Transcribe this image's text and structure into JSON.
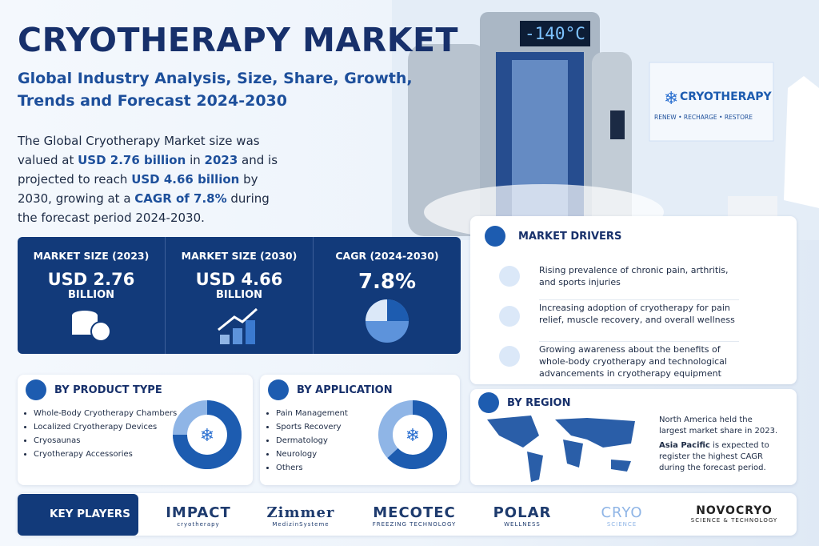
{
  "header": {
    "title": "CRYOTHERAPY MARKET",
    "subtitle_lines": [
      "Global Industry Analysis, Size, Share, Growth,",
      "Trends and Forecast 2024-2030"
    ]
  },
  "intro": {
    "parts": [
      "The Global Cryotherapy Market size was valued at ",
      "USD 2.76 billion",
      " in ",
      "2023",
      " and is projected to reach ",
      "USD 4.66 billion",
      " by 2030, growing at a ",
      "CAGR of 7.8%",
      " during the forecast period 2024-2030."
    ]
  },
  "scene": {
    "display": "-140°C",
    "sign_title": "CRYOTHERAPY",
    "sign_tagline": "RENEW • RECHARGE • RESTORE"
  },
  "stats": [
    {
      "label": "MARKET SIZE (2023)",
      "value": "USD 2.76",
      "unit": "BILLION"
    },
    {
      "label": "MARKET SIZE (2030)",
      "value": "USD 4.66",
      "unit": "BILLION"
    },
    {
      "label": "CAGR (2024-2030)",
      "value": "7.8%"
    }
  ],
  "drivers": {
    "title": "MARKET DRIVERS",
    "items": [
      "Rising prevalence of chronic pain, arthritis, and sports injuries",
      "Increasing adoption of cryotherapy for pain relief, muscle recovery, and overall wellness",
      "Growing awareness about the benefits of whole-body cryotherapy and technological advancements in cryotherapy equipment"
    ]
  },
  "product_type": {
    "title": "BY PRODUCT TYPE",
    "items": [
      "Whole-Body Cryotherapy Chambers",
      "Localized Cryotherapy Devices",
      "Cryosaunas",
      "Cryotherapy Accessories"
    ]
  },
  "application": {
    "title": "BY APPLICATION",
    "items": [
      "Pain Management",
      "Sports Recovery",
      "Dermatology",
      "Neurology",
      "Others"
    ]
  },
  "region": {
    "title": "BY REGION",
    "text_1": "North America held the largest market share in 2023.",
    "highlight": "Asia Pacific",
    "text_2": " is expected to register the highest CAGR during the forecast period."
  },
  "key_players": {
    "title": "KEY PLAYERS",
    "logos": [
      {
        "name": "IMPACT",
        "sub": "cryotherapy"
      },
      {
        "name": "Zimmer",
        "sub": "MedizinSysteme"
      },
      {
        "name": "MECOTEC",
        "sub": "FREEZING TECHNOLOGY"
      },
      {
        "name": "POLAR",
        "sub": "WELLNESS"
      },
      {
        "name": "CRYO",
        "sub": "SCIENCE"
      },
      {
        "name": "NOVOCRYO",
        "sub": "SCIENCE & TECHNOLOGY"
      }
    ]
  }
}
